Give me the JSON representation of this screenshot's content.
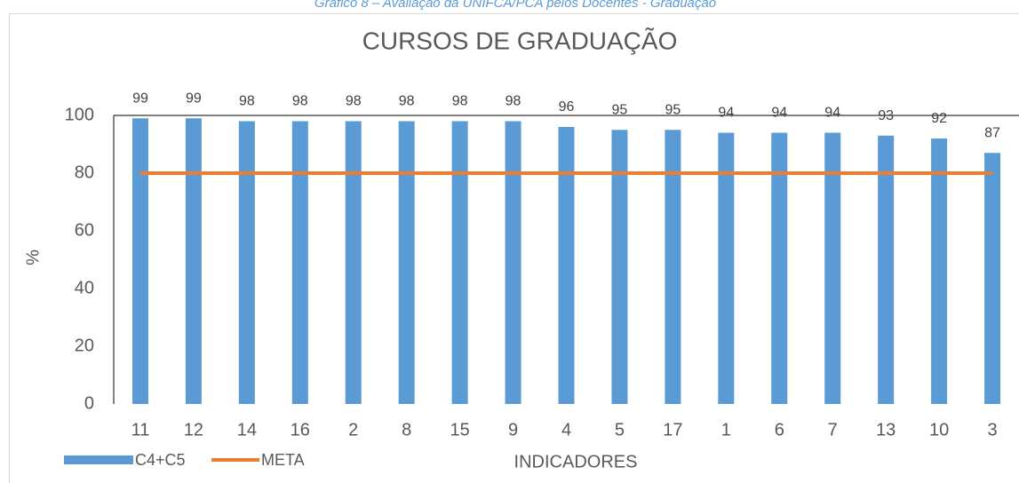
{
  "caption": "Gráfico 8 – Avaliação da UNIFCA/PCA pelos Docentes - Graduação",
  "chart_data": {
    "type": "bar",
    "title": "CURSOS DE GRADUAÇÃO",
    "x_label": "INDICADORES",
    "y_label": "%",
    "categories": [
      "11",
      "12",
      "14",
      "16",
      "2",
      "8",
      "15",
      "9",
      "4",
      "5",
      "17",
      "1",
      "6",
      "7",
      "13",
      "10",
      "3"
    ],
    "series": [
      {
        "name": "C4+C5",
        "type": "bar",
        "color": "#5b9bd5",
        "values": [
          99,
          99,
          98,
          98,
          98,
          98,
          98,
          98,
          96,
          95,
          95,
          94,
          94,
          94,
          93,
          92,
          87
        ]
      },
      {
        "name": "META",
        "type": "line",
        "color": "#ed7d31",
        "values": [
          80,
          80,
          80,
          80,
          80,
          80,
          80,
          80,
          80,
          80,
          80,
          80,
          80,
          80,
          80,
          80,
          80
        ]
      }
    ],
    "ylim": [
      0,
      100
    ],
    "yticks": [
      0,
      20,
      40,
      60,
      80,
      100
    ],
    "grid": false,
    "legend": "bottom-left"
  }
}
